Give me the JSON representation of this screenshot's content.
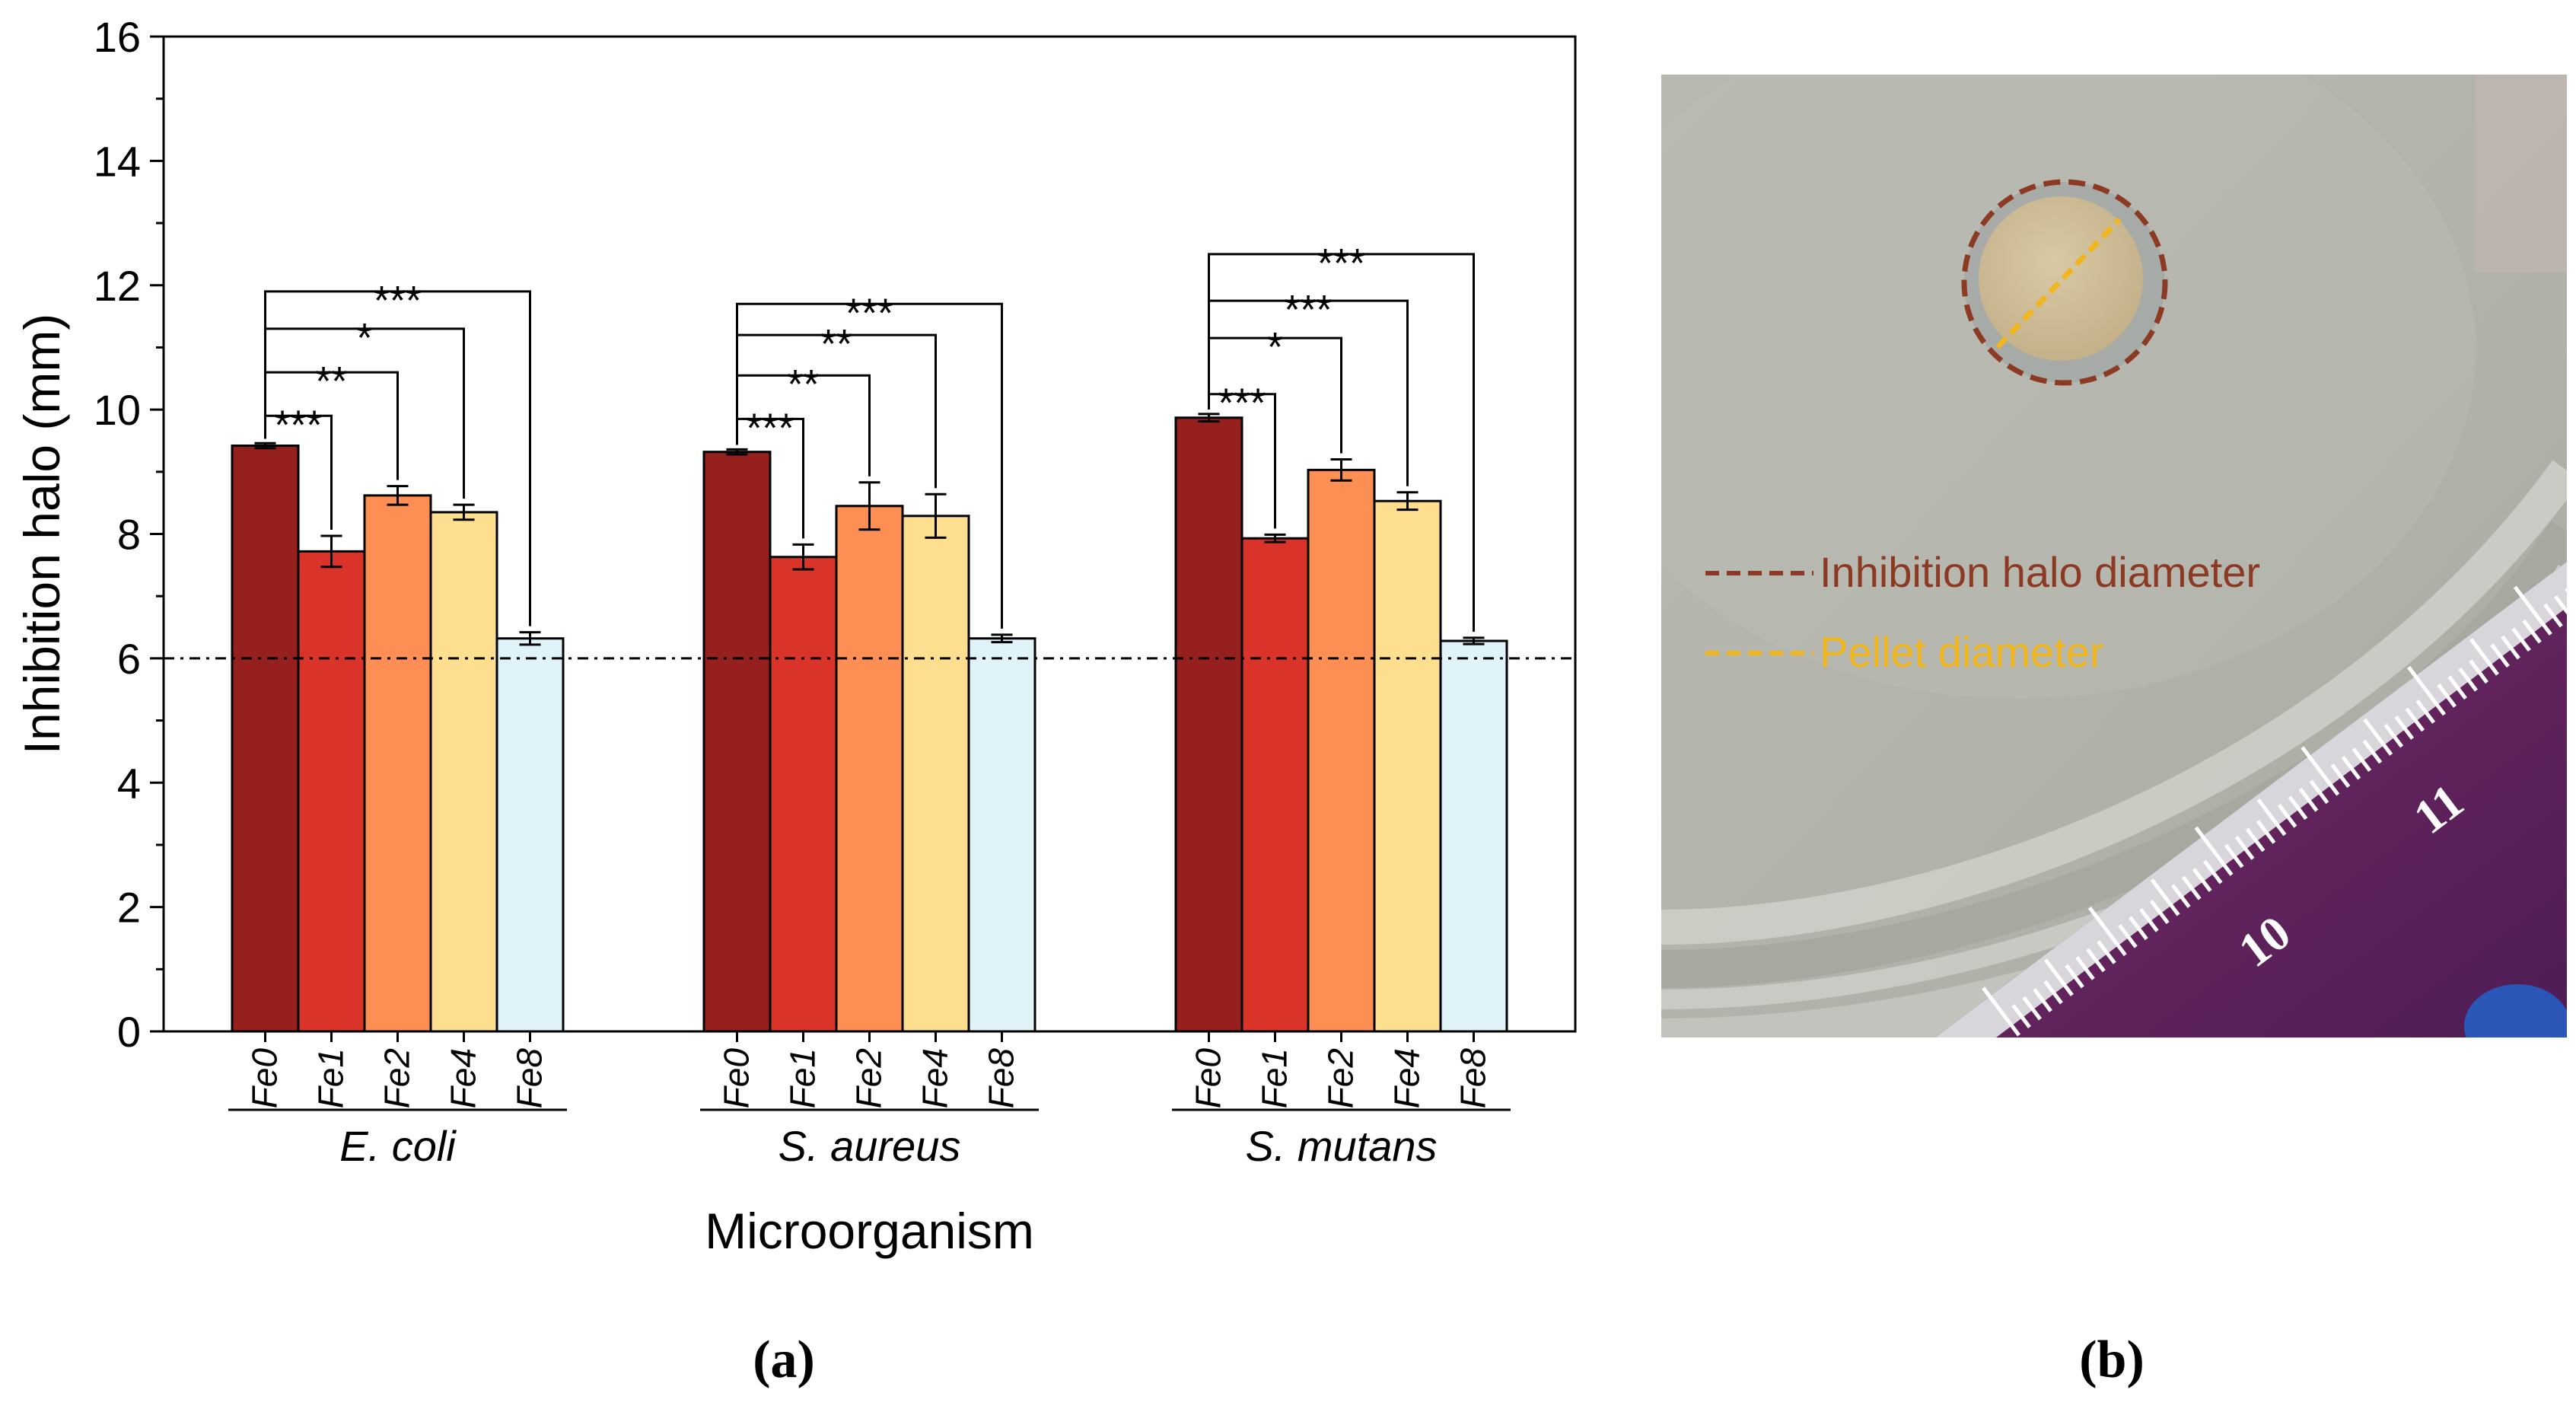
{
  "chart_data": {
    "type": "bar",
    "title": "",
    "xlabel": "Microorganism",
    "ylabel": "Inhibition halo (mm)",
    "ylim": [
      0,
      16
    ],
    "yticks": [
      0,
      2,
      4,
      6,
      8,
      10,
      12,
      14,
      16
    ],
    "grid": false,
    "reference_line": {
      "value": 6,
      "style": "dash-dot"
    },
    "series_names": [
      "Fe0",
      "Fe1",
      "Fe2",
      "Fe4",
      "Fe8"
    ],
    "series_colors": [
      "#95201e",
      "#da3329",
      "#fd8f55",
      "#fedf8f",
      "#e0f3f8"
    ],
    "groups": [
      {
        "name": "E. coli",
        "values": [
          9.42,
          7.72,
          8.62,
          8.35,
          6.32
        ],
        "errors": [
          0.04,
          0.25,
          0.15,
          0.12,
          0.1
        ]
      },
      {
        "name": "S. aureus",
        "values": [
          9.32,
          7.63,
          8.45,
          8.29,
          6.32
        ],
        "errors": [
          0.04,
          0.2,
          0.38,
          0.35,
          0.06
        ]
      },
      {
        "name": "S. mutans",
        "values": [
          9.87,
          7.93,
          9.03,
          8.53,
          6.28
        ],
        "errors": [
          0.06,
          0.06,
          0.17,
          0.14,
          0.05
        ]
      }
    ],
    "significance": [
      {
        "group": 0,
        "from": 0,
        "to": 1,
        "label": "***",
        "height": 9.9
      },
      {
        "group": 0,
        "from": 0,
        "to": 2,
        "label": "**",
        "height": 10.6
      },
      {
        "group": 0,
        "from": 0,
        "to": 3,
        "label": "*",
        "height": 11.3
      },
      {
        "group": 0,
        "from": 0,
        "to": 4,
        "label": "***",
        "height": 11.9
      },
      {
        "group": 1,
        "from": 0,
        "to": 1,
        "label": "***",
        "height": 9.85
      },
      {
        "group": 1,
        "from": 0,
        "to": 2,
        "label": "**",
        "height": 10.55
      },
      {
        "group": 1,
        "from": 0,
        "to": 3,
        "label": "**",
        "height": 11.2
      },
      {
        "group": 1,
        "from": 0,
        "to": 4,
        "label": "***",
        "height": 11.7
      },
      {
        "group": 1,
        "from": 0,
        "to": 4,
        "label": "",
        "height": 0
      }
    ],
    "significance_extra": [
      {
        "group": 2,
        "from": 0,
        "to": 1,
        "label": "***",
        "height": 10.25
      },
      {
        "group": 2,
        "from": 0,
        "to": 2,
        "label": "*",
        "height": 11.15
      },
      {
        "group": 2,
        "from": 0,
        "to": 3,
        "label": "***",
        "height": 11.75
      },
      {
        "group": 2,
        "from": 0,
        "to": 4,
        "label": "***",
        "height": 12.5
      }
    ]
  },
  "panel_labels": {
    "a": "(a)",
    "b": "(b)"
  },
  "photo": {
    "legend": [
      {
        "label": "Inhibition halo diameter",
        "color": "#8c3a23"
      },
      {
        "label": "Pellet diameter",
        "color": "#f0b61c"
      }
    ],
    "ruler_numbers": [
      "10",
      "11"
    ]
  }
}
